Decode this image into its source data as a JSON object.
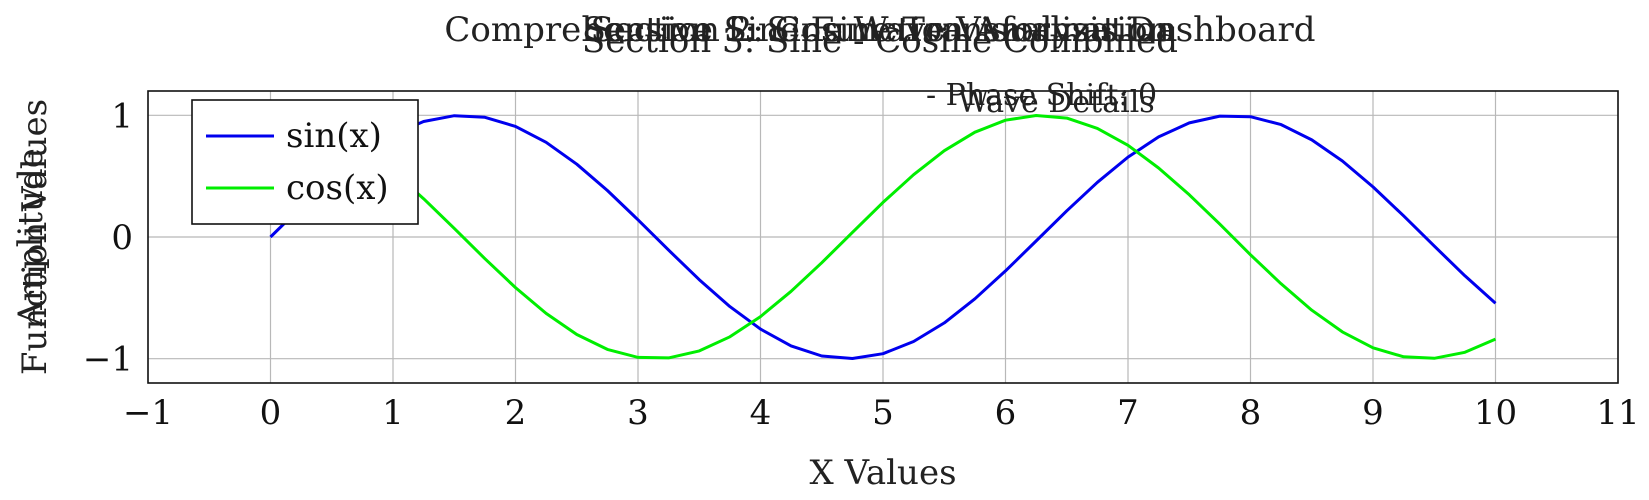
{
  "titles": [
    "Comprehensive Sine Function Analysis Dashboard",
    "Section 1: Sine Wave Visualization",
    "Section 2: Cosine Transformation",
    "Section 3: Sine - Cosine Combined"
  ],
  "annotations": [
    "Wave Details",
    "- Phase Shift: 0"
  ],
  "chart_data": {
    "type": "line",
    "title": "Comprehensive Sine Function Analysis Dashboard",
    "xlabel": "X Values",
    "ylabel": "Function Values",
    "ylabel_overlap": "Amplitude",
    "xlim": [
      -1,
      11
    ],
    "ylim": [
      -1.2,
      1.2
    ],
    "xticks": [
      -1,
      0,
      1,
      2,
      3,
      4,
      5,
      6,
      7,
      8,
      9,
      10,
      11
    ],
    "yticks": [
      -1,
      0,
      1
    ],
    "xtick_labels": [
      "−1",
      "0",
      "1",
      "2",
      "3",
      "4",
      "5",
      "6",
      "7",
      "8",
      "9",
      "10",
      "11"
    ],
    "ytick_labels": [
      "−1",
      "0",
      "1"
    ],
    "grid": true,
    "legend_position": "top-left",
    "series": [
      {
        "name": "sin(x)",
        "color": "#0000ee",
        "x": [
          0,
          0.25,
          0.5,
          0.75,
          1,
          1.25,
          1.5,
          1.75,
          2,
          2.25,
          2.5,
          2.75,
          3,
          3.25,
          3.5,
          3.75,
          4,
          4.25,
          4.5,
          4.75,
          5,
          5.25,
          5.5,
          5.75,
          6,
          6.25,
          6.5,
          6.75,
          7,
          7.25,
          7.5,
          7.75,
          8,
          8.25,
          8.5,
          8.75,
          9,
          9.25,
          9.5,
          9.75,
          10
        ],
        "y": [
          0,
          0.247,
          0.479,
          0.682,
          0.841,
          0.949,
          0.997,
          0.984,
          0.909,
          0.778,
          0.598,
          0.382,
          0.141,
          -0.108,
          -0.351,
          -0.572,
          -0.757,
          -0.895,
          -0.978,
          -0.999,
          -0.959,
          -0.859,
          -0.706,
          -0.508,
          -0.279,
          -0.033,
          0.215,
          0.45,
          0.657,
          0.823,
          0.938,
          0.994,
          0.989,
          0.924,
          0.798,
          0.625,
          0.412,
          0.174,
          -0.075,
          -0.319,
          -0.544
        ]
      },
      {
        "name": "cos(x)",
        "color": "#00ee00",
        "x": [
          0,
          0.25,
          0.5,
          0.75,
          1,
          1.25,
          1.5,
          1.75,
          2,
          2.25,
          2.5,
          2.75,
          3,
          3.25,
          3.5,
          3.75,
          4,
          4.25,
          4.5,
          4.75,
          5,
          5.25,
          5.5,
          5.75,
          6,
          6.25,
          6.5,
          6.75,
          7,
          7.25,
          7.5,
          7.75,
          8,
          8.25,
          8.5,
          8.75,
          9,
          9.25,
          9.5,
          9.75,
          10
        ],
        "y": [
          1,
          0.969,
          0.878,
          0.732,
          0.54,
          0.315,
          0.071,
          -0.178,
          -0.416,
          -0.628,
          -0.801,
          -0.924,
          -0.99,
          -0.994,
          -0.936,
          -0.82,
          -0.654,
          -0.446,
          -0.211,
          0.038,
          0.284,
          0.512,
          0.709,
          0.861,
          0.96,
          0.999,
          0.977,
          0.893,
          0.754,
          0.567,
          0.347,
          0.105,
          -0.146,
          -0.385,
          -0.602,
          -0.78,
          -0.911,
          -0.985,
          -0.997,
          -0.948,
          -0.839
        ]
      }
    ]
  }
}
